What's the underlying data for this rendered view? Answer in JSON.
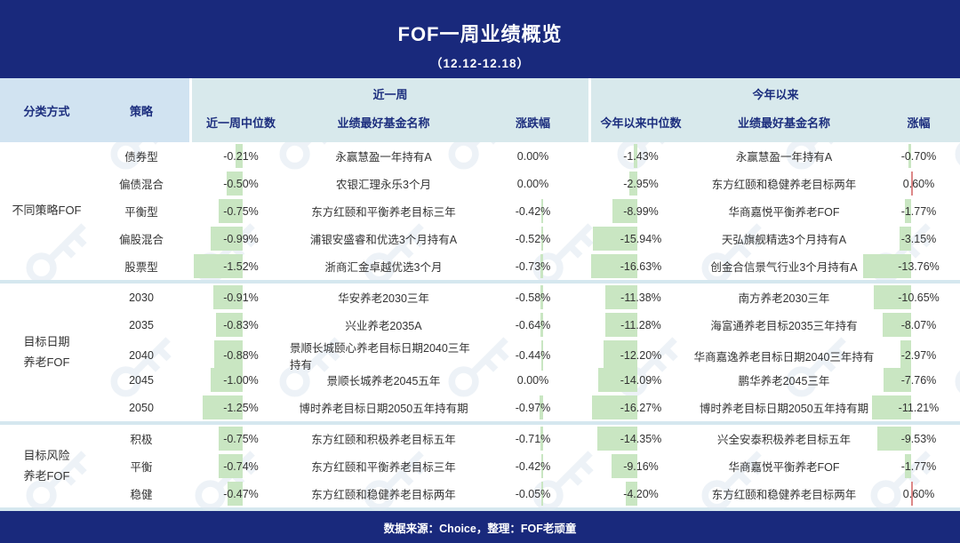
{
  "title": "FOF一周业绩概览",
  "subtitle": "（12.12-12.18）",
  "header": {
    "classification": "分类方式",
    "strategy": "策略",
    "week_group": "近一周",
    "ytd_group": "今年以来",
    "week_median": "近一周中位数",
    "week_fund": "业绩最好基金名称",
    "week_change": "涨跌幅",
    "ytd_median": "今年以来中位数",
    "ytd_fund": "业绩最好基金名称",
    "ytd_change": "涨幅"
  },
  "footer": {
    "text": "数据来源：Choice，整理：FOF老顽童"
  },
  "colors": {
    "navy": "#19297c",
    "header_left_bg": "#d1e3f1",
    "header_section_bg": "#d8e9ec",
    "header_text": "#1c2e7e",
    "bar_negative_green": "#c9e6c2",
    "bar_positive_red": "#dd8888",
    "group_separator": "#d5e7ef",
    "body_text": "#333333",
    "watermark": "#dfe9f1"
  },
  "groups": [
    {
      "name": "不同策略FOF",
      "rows": [
        {
          "strategy": "债券型",
          "week_median": "-0.21%",
          "week_fund": "永赢慧盈一年持有A",
          "week_change": "0.00%",
          "ytd_median": "-1.43%",
          "ytd_fund": "永赢慧盈一年持有A",
          "ytd_change": "-0.70%"
        },
        {
          "strategy": "偏债混合",
          "week_median": "-0.50%",
          "week_fund": "农银汇理永乐3个月",
          "week_change": "0.00%",
          "ytd_median": "-2.95%",
          "ytd_fund": "东方红颐和稳健养老目标两年",
          "ytd_change": "0.60%"
        },
        {
          "strategy": "平衡型",
          "week_median": "-0.75%",
          "week_fund": "东方红颐和平衡养老目标三年",
          "week_change": "-0.42%",
          "ytd_median": "-8.99%",
          "ytd_fund": "华商嘉悦平衡养老FOF",
          "ytd_change": "-1.77%"
        },
        {
          "strategy": "偏股混合",
          "week_median": "-0.99%",
          "week_fund": "浦银安盛睿和优选3个月持有A",
          "week_change": "-0.52%",
          "ytd_median": "-15.94%",
          "ytd_fund": "天弘旗舰精选3个月持有A",
          "ytd_change": "-3.15%"
        },
        {
          "strategy": "股票型",
          "week_median": "-1.52%",
          "week_fund": "浙商汇金卓越优选3个月",
          "week_change": "-0.73%",
          "ytd_median": "-16.63%",
          "ytd_fund": "创金合信景气行业3个月持有A",
          "ytd_change": "-13.76%"
        }
      ]
    },
    {
      "name": "目标日期\n养老FOF",
      "rows": [
        {
          "strategy": "2030",
          "week_median": "-0.91%",
          "week_fund": "华安养老2030三年",
          "week_change": "-0.58%",
          "ytd_median": "-11.38%",
          "ytd_fund": "南方养老2030三年",
          "ytd_change": "-10.65%"
        },
        {
          "strategy": "2035",
          "week_median": "-0.83%",
          "week_fund": "兴业养老2035A",
          "week_change": "-0.64%",
          "ytd_median": "-11.28%",
          "ytd_fund": "海富通养老目标2035三年持有",
          "ytd_change": "-8.07%"
        },
        {
          "strategy": "2040",
          "week_median": "-0.88%",
          "week_fund": "景顺长城颐心养老目标日期2040三年持有",
          "week_change": "-0.44%",
          "ytd_median": "-12.20%",
          "ytd_fund": "华商嘉逸养老目标日期2040三年持有",
          "ytd_change": "-2.97%"
        },
        {
          "strategy": "2045",
          "week_median": "-1.00%",
          "week_fund": "景顺长城养老2045五年",
          "week_change": "0.00%",
          "ytd_median": "-14.09%",
          "ytd_fund": "鹏华养老2045三年",
          "ytd_change": "-7.76%"
        },
        {
          "strategy": "2050",
          "week_median": "-1.25%",
          "week_fund": "博时养老目标日期2050五年持有期",
          "week_change": "-0.97%",
          "ytd_median": "-16.27%",
          "ytd_fund": "博时养老目标日期2050五年持有期",
          "ytd_change": "-11.21%"
        }
      ]
    },
    {
      "name": "目标风险\n养老FOF",
      "rows": [
        {
          "strategy": "积极",
          "week_median": "-0.75%",
          "week_fund": "东方红颐和积极养老目标五年",
          "week_change": "-0.71%",
          "ytd_median": "-14.35%",
          "ytd_fund": "兴全安泰积极养老目标五年",
          "ytd_change": "-9.53%"
        },
        {
          "strategy": "平衡",
          "week_median": "-0.74%",
          "week_fund": "东方红颐和平衡养老目标三年",
          "week_change": "-0.42%",
          "ytd_median": "-9.16%",
          "ytd_fund": "华商嘉悦平衡养老FOF",
          "ytd_change": "-1.77%"
        },
        {
          "strategy": "稳健",
          "week_median": "-0.47%",
          "week_fund": "东方红颐和稳健养老目标两年",
          "week_change": "-0.05%",
          "ytd_median": "-4.20%",
          "ytd_fund": "东方红颐和稳健养老目标两年",
          "ytd_change": "0.60%"
        }
      ]
    }
  ],
  "chart_data": {
    "type": "table",
    "title": "FOF一周业绩概览（12.12-12.18）",
    "columns": [
      "分类方式",
      "策略",
      "近一周中位数",
      "近一周业绩最好基金名称",
      "近一周涨跌幅",
      "今年以来中位数",
      "今年以来业绩最好基金名称",
      "今年以来涨幅"
    ],
    "rows": [
      [
        "不同策略FOF",
        "债券型",
        -0.21,
        "永赢慧盈一年持有A",
        0.0,
        -1.43,
        "永赢慧盈一年持有A",
        -0.7
      ],
      [
        "不同策略FOF",
        "偏债混合",
        -0.5,
        "农银汇理永乐3个月",
        0.0,
        -2.95,
        "东方红颐和稳健养老目标两年",
        0.6
      ],
      [
        "不同策略FOF",
        "平衡型",
        -0.75,
        "东方红颐和平衡养老目标三年",
        -0.42,
        -8.99,
        "华商嘉悦平衡养老FOF",
        -1.77
      ],
      [
        "不同策略FOF",
        "偏股混合",
        -0.99,
        "浦银安盛睿和优选3个月持有A",
        -0.52,
        -15.94,
        "天弘旗舰精选3个月持有A",
        -3.15
      ],
      [
        "不同策略FOF",
        "股票型",
        -1.52,
        "浙商汇金卓越优选3个月",
        -0.73,
        -16.63,
        "创金合信景气行业3个月持有A",
        -13.76
      ],
      [
        "目标日期养老FOF",
        "2030",
        -0.91,
        "华安养老2030三年",
        -0.58,
        -11.38,
        "南方养老2030三年",
        -10.65
      ],
      [
        "目标日期养老FOF",
        "2035",
        -0.83,
        "兴业养老2035A",
        -0.64,
        -11.28,
        "海富通养老目标2035三年持有",
        -8.07
      ],
      [
        "目标日期养老FOF",
        "2040",
        -0.88,
        "景顺长城颐心养老目标日期2040三年持有",
        -0.44,
        -12.2,
        "华商嘉逸养老目标日期2040三年持有",
        -2.97
      ],
      [
        "目标日期养老FOF",
        "2045",
        -1.0,
        "景顺长城养老2045五年",
        0.0,
        -14.09,
        "鹏华养老2045三年",
        -7.76
      ],
      [
        "目标日期养老FOF",
        "2050",
        -1.25,
        "博时养老目标日期2050五年持有期",
        -0.97,
        -16.27,
        "博时养老目标日期2050五年持有期",
        -11.21
      ],
      [
        "目标风险养老FOF",
        "积极",
        -0.75,
        "东方红颐和积极养老目标五年",
        -0.71,
        -14.35,
        "兴全安泰积极养老目标五年",
        -9.53
      ],
      [
        "目标风险养老FOF",
        "平衡",
        -0.74,
        "东方红颐和平衡养老目标三年",
        -0.42,
        -9.16,
        "华商嘉悦平衡养老FOF",
        -1.77
      ],
      [
        "目标风险养老FOF",
        "稳健",
        -0.47,
        "东方红颐和稳健养老目标两年",
        -0.05,
        -4.2,
        "东方红颐和稳健养老目标两年",
        0.6
      ]
    ],
    "notes": "单元格内为条件格式数据条：负值绿色向左，正值红色向右"
  }
}
